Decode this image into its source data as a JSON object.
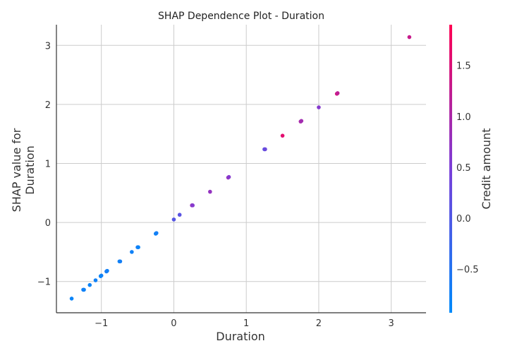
{
  "chart_data": {
    "type": "scatter",
    "title": "SHAP Dependence Plot - Duration",
    "xlabel": "Duration",
    "ylabel": "SHAP value for\nDuration",
    "xlim": [
      -1.62,
      3.48
    ],
    "ylim": [
      -1.53,
      3.35
    ],
    "x_ticks": [
      -1,
      0,
      1,
      2,
      3
    ],
    "x_tick_labels": [
      "−1",
      "0",
      "1",
      "2",
      "3"
    ],
    "y_ticks": [
      -1,
      0,
      1,
      2,
      3
    ],
    "y_tick_labels": [
      "−1",
      "0",
      "1",
      "2",
      "3"
    ],
    "grid": true,
    "colorbar": {
      "label": "Credit amount",
      "range": [
        -0.93,
        1.9
      ],
      "ticks": [
        -0.5,
        0.0,
        0.5,
        1.0,
        1.5
      ],
      "tick_labels": [
        "−0.5",
        "0.0",
        "0.5",
        "1.0",
        "1.5"
      ],
      "color_low": "#008bfb",
      "color_high": "#ff0052"
    },
    "points": [
      {
        "x": -1.41,
        "y": -1.29,
        "c": -0.8
      },
      {
        "x": -1.24,
        "y": -1.14,
        "c": -0.8
      },
      {
        "x": -1.25,
        "y": -1.14,
        "c": -0.75
      },
      {
        "x": -1.16,
        "y": -1.06,
        "c": -0.8
      },
      {
        "x": -1.08,
        "y": -0.98,
        "c": -0.75
      },
      {
        "x": -1.0,
        "y": -0.9,
        "c": -0.7
      },
      {
        "x": -1.01,
        "y": -0.91,
        "c": -0.8
      },
      {
        "x": -0.92,
        "y": -0.82,
        "c": -0.75
      },
      {
        "x": -0.93,
        "y": -0.83,
        "c": -0.7
      },
      {
        "x": -0.75,
        "y": -0.66,
        "c": -0.8
      },
      {
        "x": -0.74,
        "y": -0.66,
        "c": -0.7
      },
      {
        "x": -0.58,
        "y": -0.5,
        "c": -0.75
      },
      {
        "x": -0.5,
        "y": -0.42,
        "c": -0.6
      },
      {
        "x": -0.49,
        "y": -0.42,
        "c": -0.8
      },
      {
        "x": -0.25,
        "y": -0.19,
        "c": -0.8
      },
      {
        "x": -0.24,
        "y": -0.18,
        "c": -0.7
      },
      {
        "x": 0.0,
        "y": 0.05,
        "c": 0.05
      },
      {
        "x": 0.08,
        "y": 0.13,
        "c": 0.1
      },
      {
        "x": 0.25,
        "y": 0.29,
        "c": 0.8
      },
      {
        "x": 0.26,
        "y": 0.29,
        "c": 0.6
      },
      {
        "x": 0.5,
        "y": 0.52,
        "c": 0.75
      },
      {
        "x": 0.75,
        "y": 0.76,
        "c": 0.8
      },
      {
        "x": 0.76,
        "y": 0.77,
        "c": 0.6
      },
      {
        "x": 1.25,
        "y": 1.24,
        "c": 0.1
      },
      {
        "x": 1.26,
        "y": 1.24,
        "c": 0.3
      },
      {
        "x": 1.5,
        "y": 1.47,
        "c": 1.6
      },
      {
        "x": 1.75,
        "y": 1.71,
        "c": 1.0
      },
      {
        "x": 1.76,
        "y": 1.72,
        "c": 0.9
      },
      {
        "x": 2.0,
        "y": 1.95,
        "c": 0.6
      },
      {
        "x": 2.25,
        "y": 2.18,
        "c": 1.5
      },
      {
        "x": 2.26,
        "y": 2.19,
        "c": 1.2
      },
      {
        "x": 3.25,
        "y": 3.14,
        "c": 1.3
      }
    ]
  }
}
